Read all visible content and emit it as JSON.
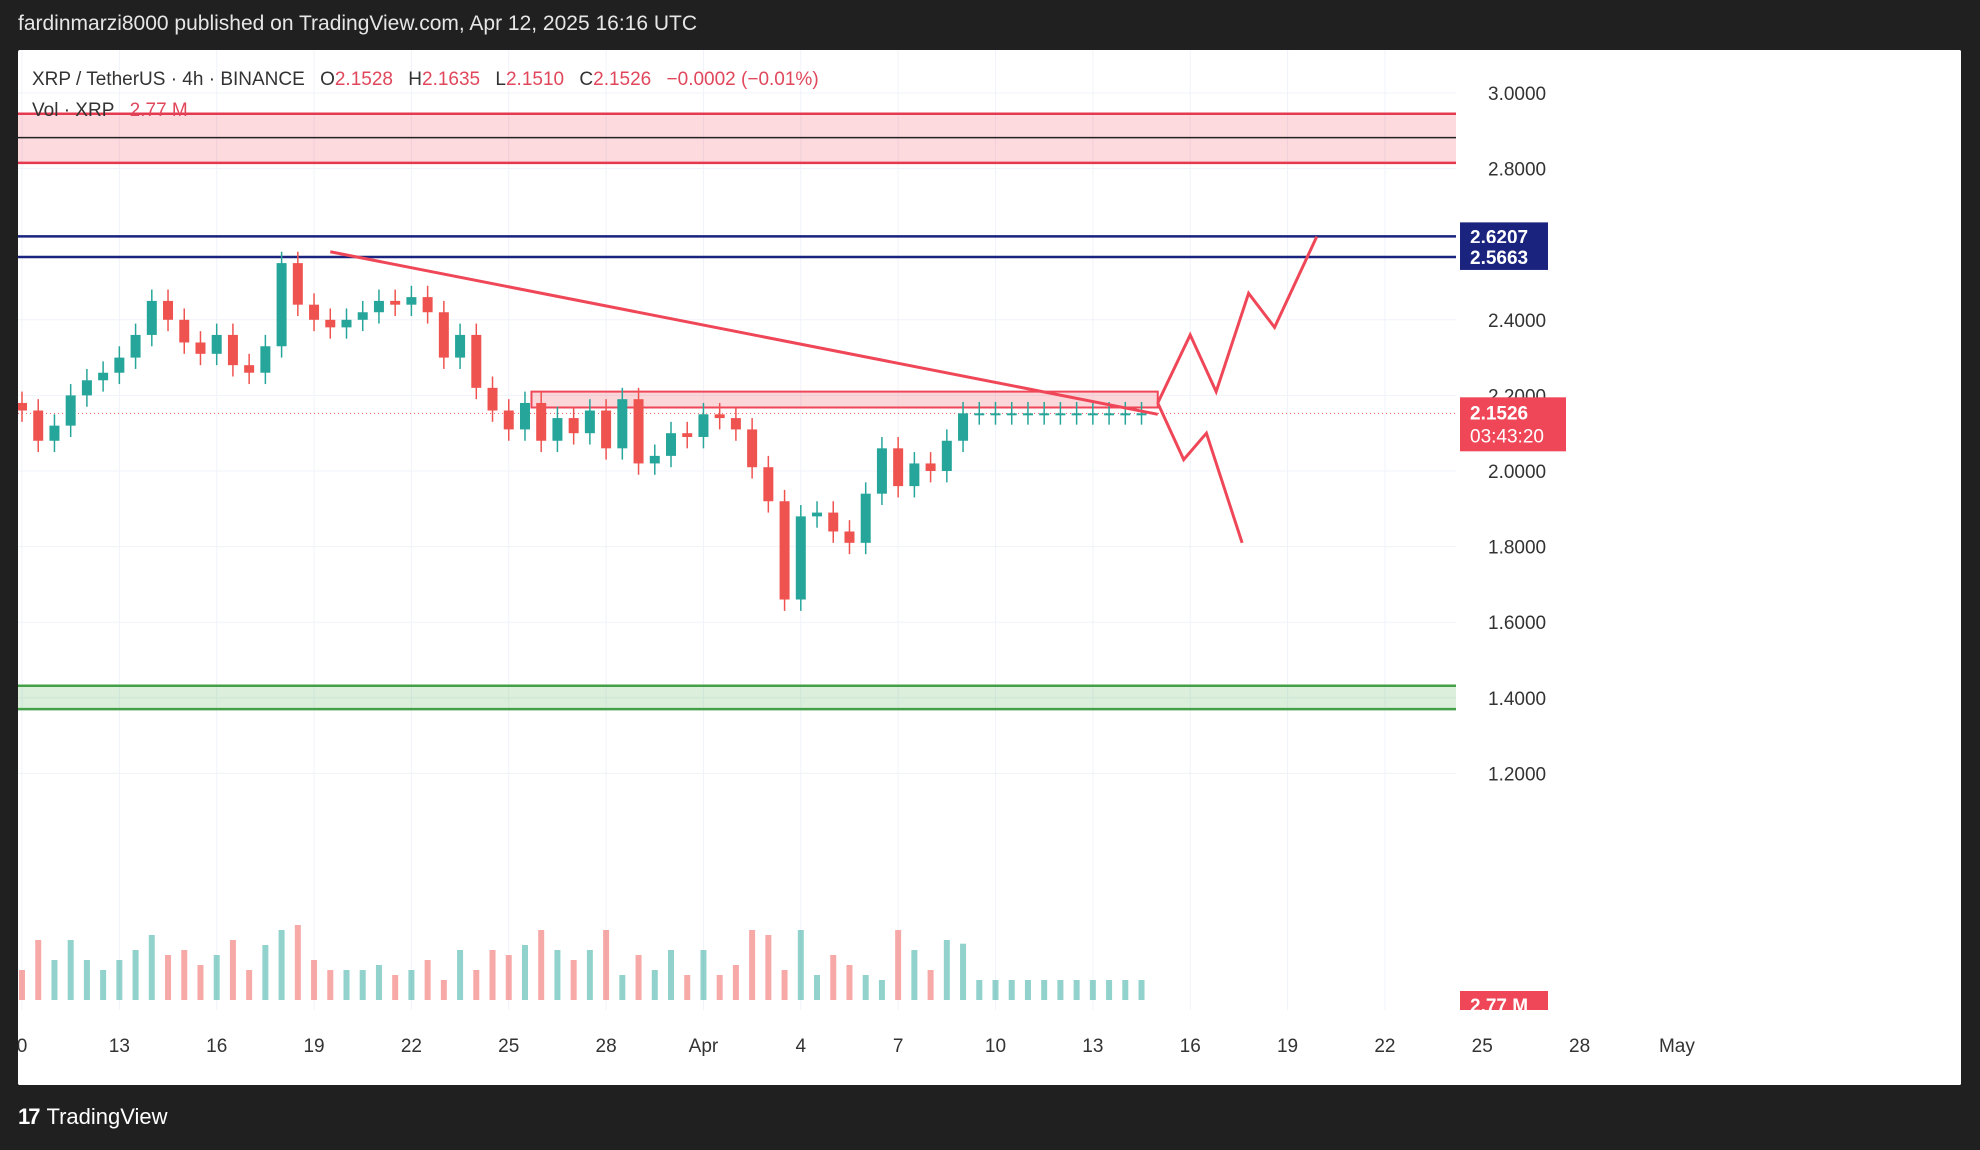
{
  "header": {
    "caption": "fardinmarzi8000 published on TradingView.com, Apr 12, 2025 16:16 UTC"
  },
  "legend": {
    "symbol": "XRP / TetherUS · 4h · BINANCE",
    "open_label": "O",
    "open": "2.1528",
    "high_label": "H",
    "high": "2.1635",
    "low_label": "L",
    "low": "2.1510",
    "close_label": "C",
    "close": "2.1526",
    "change": "−0.0002 (−0.01%)",
    "vol_label": "Vol · XRP",
    "vol_value": "2.77 M"
  },
  "footer": {
    "brand": "TradingView",
    "brand_mark": "17"
  },
  "colors": {
    "up": "#26a69a",
    "down": "#ef5350",
    "resistance_zone": "#e53950",
    "support_zone": "#43a047",
    "blue_level": "#1a237e",
    "annotation": "#ef4758"
  },
  "chart_data": {
    "type": "candlestick",
    "symbol": "XRP / TetherUS",
    "interval": "4h",
    "exchange": "BINANCE",
    "y_axis": {
      "ticks": [
        "3.0000",
        "2.8000",
        "2.4000",
        "2.2000",
        "2.0000",
        "1.8000",
        "1.6000",
        "1.4000",
        "1.2000"
      ],
      "range": [
        1.1,
        3.05
      ]
    },
    "x_axis": {
      "ticks": [
        "0",
        "13",
        "16",
        "19",
        "22",
        "25",
        "28",
        "Apr",
        "4",
        "7",
        "10",
        "13",
        "16",
        "19",
        "22",
        "25",
        "28",
        "May"
      ]
    },
    "price_labels": {
      "level_high": "2.6207",
      "level_low": "2.5663",
      "last_price": "2.1526",
      "countdown": "03:43:20",
      "volume": "2.77 M"
    },
    "zones": [
      {
        "kind": "resistance",
        "from": 2.815,
        "to": 2.945,
        "mid": 2.882
      },
      {
        "kind": "support",
        "from": 1.37,
        "to": 1.432
      },
      {
        "kind": "breakout-box",
        "from": 2.168,
        "to": 2.21
      }
    ],
    "levels": [
      2.6207,
      2.5663
    ],
    "last_price": 2.1526,
    "trendline": {
      "from": {
        "x": 19.5,
        "y": 2.58
      },
      "to": {
        "x": 45,
        "y": 2.15
      }
    },
    "projections": {
      "bullish": [
        [
          45,
          2.18
        ],
        [
          46.0,
          2.36
        ],
        [
          46.8,
          2.21
        ],
        [
          47.8,
          2.47
        ],
        [
          48.6,
          2.38
        ],
        [
          49.9,
          2.62
        ]
      ],
      "bearish": [
        [
          45,
          2.18
        ],
        [
          45.8,
          2.03
        ],
        [
          46.5,
          2.1
        ],
        [
          47.6,
          1.81
        ]
      ]
    },
    "series": [
      {
        "name": "price",
        "x": [
          10.0,
          10.5,
          11.0,
          11.5,
          12.0,
          12.5,
          13.0,
          13.5,
          14.0,
          14.5,
          15.0,
          15.5,
          16.0,
          16.5,
          17.0,
          17.5,
          18.0,
          18.5,
          19.0,
          19.5,
          20.0,
          20.5,
          21.0,
          21.5,
          22.0,
          22.5,
          23.0,
          23.5,
          24.0,
          24.5,
          25.0,
          25.5,
          26.0,
          26.5,
          27.0,
          27.5,
          28.0,
          28.5,
          29.0,
          29.5,
          30.0,
          30.5,
          31.0,
          31.5,
          32.0,
          32.5,
          33.0,
          33.5,
          34.0,
          34.5,
          35.0,
          35.5,
          36.0,
          36.5,
          37.0,
          37.5,
          38.0,
          38.5,
          39.0,
          39.5,
          40.0,
          40.5,
          41.0,
          41.5,
          42.0,
          42.5,
          43.0,
          43.5,
          44.0,
          44.5,
          45.0
        ],
        "close": [
          2.16,
          2.08,
          2.12,
          2.2,
          2.24,
          2.26,
          2.3,
          2.36,
          2.45,
          2.4,
          2.34,
          2.31,
          2.36,
          2.28,
          2.26,
          2.33,
          2.55,
          2.44,
          2.4,
          2.38,
          2.4,
          2.42,
          2.45,
          2.44,
          2.46,
          2.42,
          2.3,
          2.36,
          2.22,
          2.16,
          2.11,
          2.18,
          2.08,
          2.14,
          2.1,
          2.16,
          2.06,
          2.19,
          2.02,
          2.04,
          2.1,
          2.09,
          2.15,
          2.14,
          2.11,
          2.01,
          1.92,
          1.66,
          1.88,
          1.89,
          1.84,
          1.81,
          1.94,
          2.06,
          1.96,
          2.02,
          2.0,
          2.08,
          2.1526,
          2.1526,
          2.1526,
          2.1526,
          2.1526,
          2.1526,
          2.1526,
          2.1526,
          2.1526,
          2.1526,
          2.1526,
          2.1526,
          2.1526
        ]
      }
    ]
  }
}
